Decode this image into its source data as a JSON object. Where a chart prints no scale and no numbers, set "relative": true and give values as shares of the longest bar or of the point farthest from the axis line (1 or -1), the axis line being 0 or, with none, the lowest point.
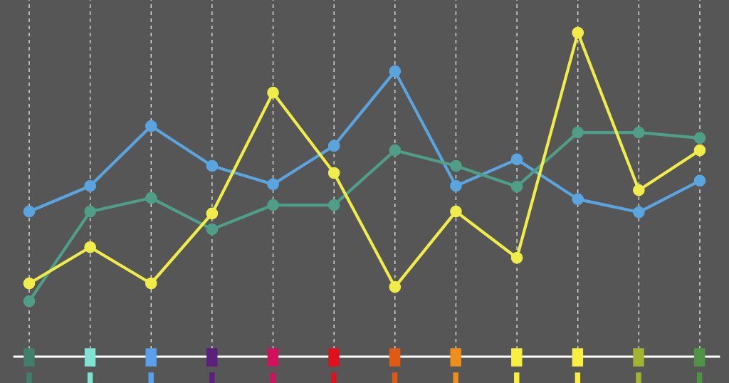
{
  "chart_data": {
    "type": "line",
    "relative": true,
    "categories": [
      null,
      null,
      null,
      null,
      null,
      null,
      null,
      null,
      null,
      null,
      null,
      null
    ],
    "series": [
      {
        "color": "#5aa5e0",
        "values": [
          0.448,
          0.527,
          0.712,
          0.589,
          0.532,
          0.651,
          0.881,
          0.527,
          0.609,
          0.486,
          0.446,
          0.543
        ]
      },
      {
        "color": "#4e9e88",
        "values": [
          0.171,
          0.448,
          0.49,
          0.393,
          0.468,
          0.468,
          0.637,
          0.589,
          0.525,
          0.692,
          0.692,
          0.675
        ]
      },
      {
        "color": "#f0ec4a",
        "values": [
          0.226,
          0.338,
          0.226,
          0.442,
          0.815,
          0.567,
          0.215,
          0.448,
          0.305,
          1,
          0.514,
          0.637
        ]
      }
    ],
    "grid": "x",
    "marker": "circle",
    "line_style": "solid",
    "legend": false
  }
}
